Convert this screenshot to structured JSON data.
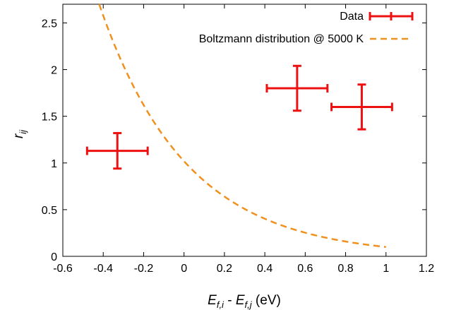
{
  "chart_data": {
    "type": "scatter",
    "title": "",
    "xlabel": {
      "E": "E",
      "sub_i": "f,i",
      "dash": " - ",
      "sub_j": "f,j",
      "unit": " (eV)"
    },
    "ylabel": {
      "r": "r",
      "sub": "ij"
    },
    "xlim": [
      -0.6,
      1.2
    ],
    "ylim": [
      0,
      2.7
    ],
    "x_ticks": [
      "-0.6",
      "-0.4",
      "-0.2",
      "0",
      "0.2",
      "0.4",
      "0.6",
      "0.8",
      "1",
      "1.2"
    ],
    "y_ticks": [
      "0",
      "0.5",
      "1",
      "1.5",
      "2",
      "2.5"
    ],
    "grid": false,
    "legend_position": "top-right",
    "series": [
      {
        "name": "Data",
        "type": "errorbar",
        "color": "#ee1111",
        "points": [
          {
            "x": -0.33,
            "y": 1.13,
            "xerr": 0.15,
            "yerr": 0.19
          },
          {
            "x": 0.56,
            "y": 1.8,
            "xerr": 0.15,
            "yerr": 0.24
          },
          {
            "x": 0.88,
            "y": 1.6,
            "xerr": 0.15,
            "yerr": 0.24
          }
        ]
      },
      {
        "name": "Boltzmann distribution @ 5000 K",
        "type": "line",
        "style": "dashed",
        "color": "#f0901e",
        "x_range": [
          -0.6,
          1.0
        ],
        "temperature_K": 5000
      }
    ]
  }
}
